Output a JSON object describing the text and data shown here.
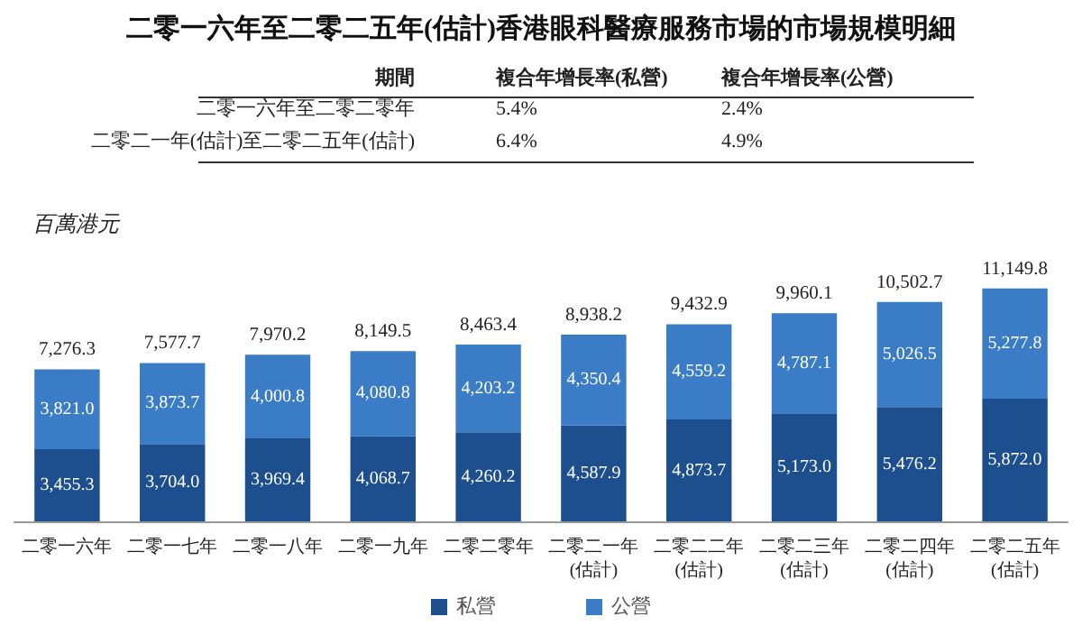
{
  "chart_data": {
    "type": "bar",
    "title": "二零一六年至二零二五年(估計)香港眼科醫療服務市場的市場規模明細",
    "ylabel": "百萬港元",
    "categories": [
      "二零一六年",
      "二零一七年",
      "二零一八年",
      "二零一九年",
      "二零二零年",
      "二零二一年\n(估計)",
      "二零二二年\n(估計)",
      "二零二三年\n(估計)",
      "二零二四年\n(估計)",
      "二零二五年\n(估計)"
    ],
    "stacked": true,
    "legend": "bottom",
    "series": [
      {
        "name": "私營",
        "color": "#1d4f8f",
        "values": [
          3455.3,
          3704.0,
          3969.4,
          4068.7,
          4260.2,
          4587.9,
          4873.7,
          5173.0,
          5476.2,
          5872.0
        ],
        "value_labels": [
          "3,455.3",
          "3,704.0",
          "3,969.4",
          "4,068.7",
          "4,260.2",
          "4,587.9",
          "4,873.7",
          "5,173.0",
          "5,476.2",
          "5,872.0"
        ]
      },
      {
        "name": "公營",
        "color": "#3b7cc6",
        "values": [
          3821.0,
          3873.7,
          4000.8,
          4080.8,
          4203.2,
          4350.4,
          4559.2,
          4787.1,
          5026.5,
          5277.8
        ],
        "value_labels": [
          "3,821.0",
          "3,873.7",
          "4,000.8",
          "4,080.8",
          "4,203.2",
          "4,350.4",
          "4,559.2",
          "4,787.1",
          "5,026.5",
          "5,277.8"
        ]
      }
    ],
    "totals": [
      "7,276.3",
      "7,577.7",
      "7,970.2",
      "8,149.5",
      "8,463.4",
      "8,938.2",
      "9,432.9",
      "9,960.1",
      "10,502.7",
      "11,149.8"
    ],
    "annotations": [
      "期間",
      "複合年增長率(私營)",
      "複合年增長率(公營)",
      "二零一六年至二零二零年",
      "5.4%",
      "2.4%",
      "二零二一年(估計)至二零二五年(估計)",
      "6.4%",
      "4.9%"
    ]
  }
}
